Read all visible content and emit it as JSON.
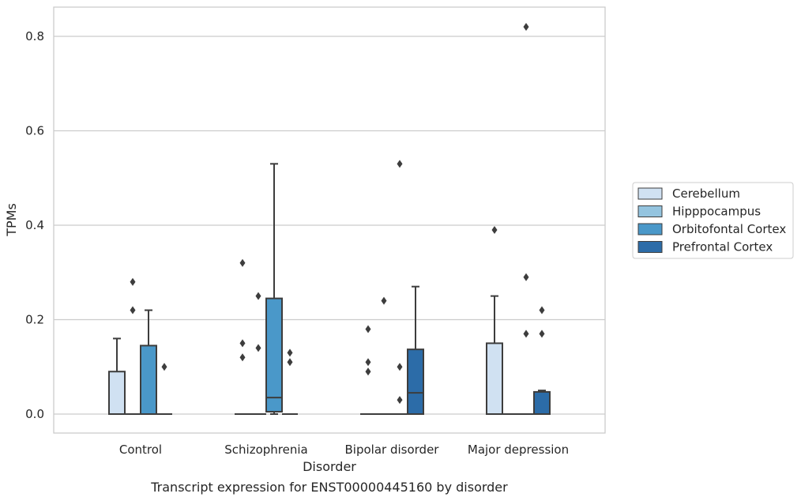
{
  "caption": "Transcript expression for ENST00000445160 by disorder",
  "chart_data": {
    "type": "box",
    "xlabel": "Disorder",
    "ylabel": "TPMs",
    "categories": [
      "Control",
      "Schizophrenia",
      "Bipolar disorder",
      "Major depression"
    ],
    "yticks": [
      "0.0",
      "0.2",
      "0.4",
      "0.6",
      "0.8"
    ],
    "ytick_values": [
      0.0,
      0.2,
      0.4,
      0.6,
      0.8
    ],
    "ylim": [
      -0.04,
      0.86
    ],
    "grid": "horizontal",
    "legend_position": "right",
    "series": [
      {
        "name": "Cerebellum",
        "color": "#d0e1f2",
        "boxes": [
          {
            "whisker_low": 0.0,
            "q1": 0.0,
            "median": 0.0,
            "q3": 0.09,
            "whisker_high": 0.16,
            "outliers": []
          },
          {
            "whisker_low": 0.0,
            "q1": 0.0,
            "median": 0.0,
            "q3": 0.0,
            "whisker_high": 0.0,
            "outliers": [
              0.12,
              0.15,
              0.32
            ]
          },
          {
            "whisker_low": 0.0,
            "q1": 0.0,
            "median": 0.0,
            "q3": 0.0,
            "whisker_high": 0.0,
            "outliers": [
              0.09,
              0.11,
              0.18
            ]
          },
          {
            "whisker_low": 0.0,
            "q1": 0.0,
            "median": 0.0,
            "q3": 0.15,
            "whisker_high": 0.25,
            "outliers": [
              0.39
            ]
          }
        ]
      },
      {
        "name": "Hipppocampus",
        "color": "#94c4df",
        "boxes": [
          {
            "whisker_low": 0.0,
            "q1": 0.0,
            "median": 0.0,
            "q3": 0.0,
            "whisker_high": 0.0,
            "outliers": [
              0.22,
              0.28
            ]
          },
          {
            "whisker_low": 0.0,
            "q1": 0.0,
            "median": 0.0,
            "q3": 0.0,
            "whisker_high": 0.0,
            "outliers": [
              0.14,
              0.25
            ]
          },
          {
            "whisker_low": 0.0,
            "q1": 0.0,
            "median": 0.0,
            "q3": 0.0,
            "whisker_high": 0.0,
            "outliers": [
              0.24
            ]
          },
          {
            "whisker_low": 0.0,
            "q1": 0.0,
            "median": 0.0,
            "q3": 0.0,
            "whisker_high": 0.0,
            "outliers": []
          }
        ]
      },
      {
        "name": "Orbitofontal Cortex",
        "color": "#4a98c9",
        "boxes": [
          {
            "whisker_low": 0.0,
            "q1": 0.0,
            "median": 0.0,
            "q3": 0.145,
            "whisker_high": 0.22,
            "outliers": []
          },
          {
            "whisker_low": 0.0,
            "q1": 0.005,
            "median": 0.035,
            "q3": 0.245,
            "whisker_high": 0.53,
            "outliers": []
          },
          {
            "whisker_low": 0.0,
            "q1": 0.0,
            "median": 0.0,
            "q3": 0.0,
            "whisker_high": 0.0,
            "outliers": [
              0.03,
              0.1,
              0.53
            ]
          },
          {
            "whisker_low": 0.0,
            "q1": 0.0,
            "median": 0.0,
            "q3": 0.0,
            "whisker_high": 0.0,
            "outliers": [
              0.17,
              0.29,
              0.82
            ]
          }
        ]
      },
      {
        "name": "Prefrontal Cortex",
        "color": "#2c6ca8",
        "boxes": [
          {
            "whisker_low": 0.0,
            "q1": 0.0,
            "median": 0.0,
            "q3": 0.0,
            "whisker_high": 0.0,
            "outliers": [
              0.1
            ]
          },
          {
            "whisker_low": 0.0,
            "q1": 0.0,
            "median": 0.0,
            "q3": 0.0,
            "whisker_high": 0.0,
            "outliers": [
              0.11,
              0.13
            ]
          },
          {
            "whisker_low": 0.0,
            "q1": 0.0,
            "median": 0.045,
            "q3": 0.137,
            "whisker_high": 0.27,
            "outliers": []
          },
          {
            "whisker_low": 0.0,
            "q1": 0.0,
            "median": 0.0,
            "q3": 0.047,
            "whisker_high": 0.05,
            "outliers": [
              0.17,
              0.22
            ]
          }
        ]
      }
    ]
  }
}
